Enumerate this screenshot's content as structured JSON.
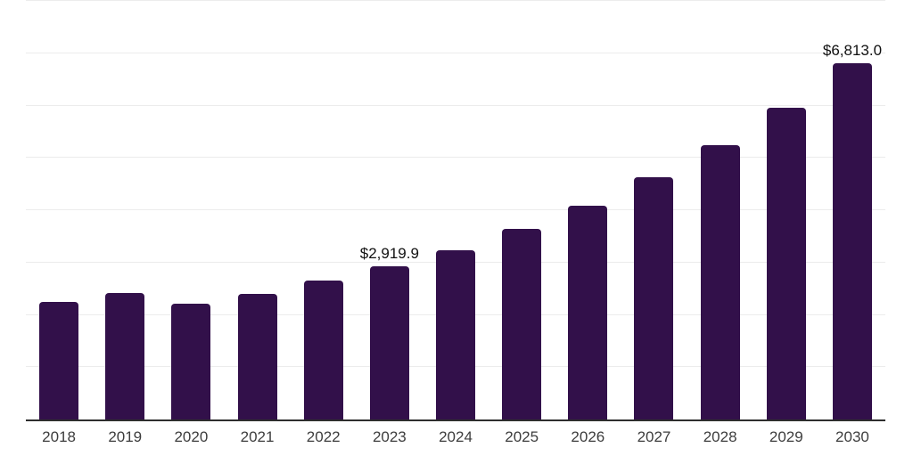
{
  "chart_data": {
    "type": "bar",
    "title": "",
    "xlabel": "",
    "ylabel": "",
    "categories": [
      "2018",
      "2019",
      "2020",
      "2021",
      "2022",
      "2023",
      "2024",
      "2025",
      "2026",
      "2027",
      "2028",
      "2029",
      "2030"
    ],
    "values": [
      2240,
      2415,
      2215,
      2395,
      2650,
      2919.9,
      3230,
      3635,
      4080,
      4625,
      5240,
      5955,
      6813
    ],
    "data_labels": [
      "",
      "",
      "",
      "",
      "",
      "$2,919.9",
      "",
      "",
      "",
      "",
      "",
      "",
      "$6,813.0"
    ],
    "ylim": [
      0,
      8000
    ],
    "gridline_interval": 1000,
    "grid": "horizontal",
    "legend": "none",
    "colors": {
      "bar": "#32104A",
      "axis_line": "#2E2E2E",
      "gridline": "#ECECEC",
      "data_label": "#111111",
      "tick_label": "#3D3D3D",
      "background": "#FFFFFF"
    }
  }
}
